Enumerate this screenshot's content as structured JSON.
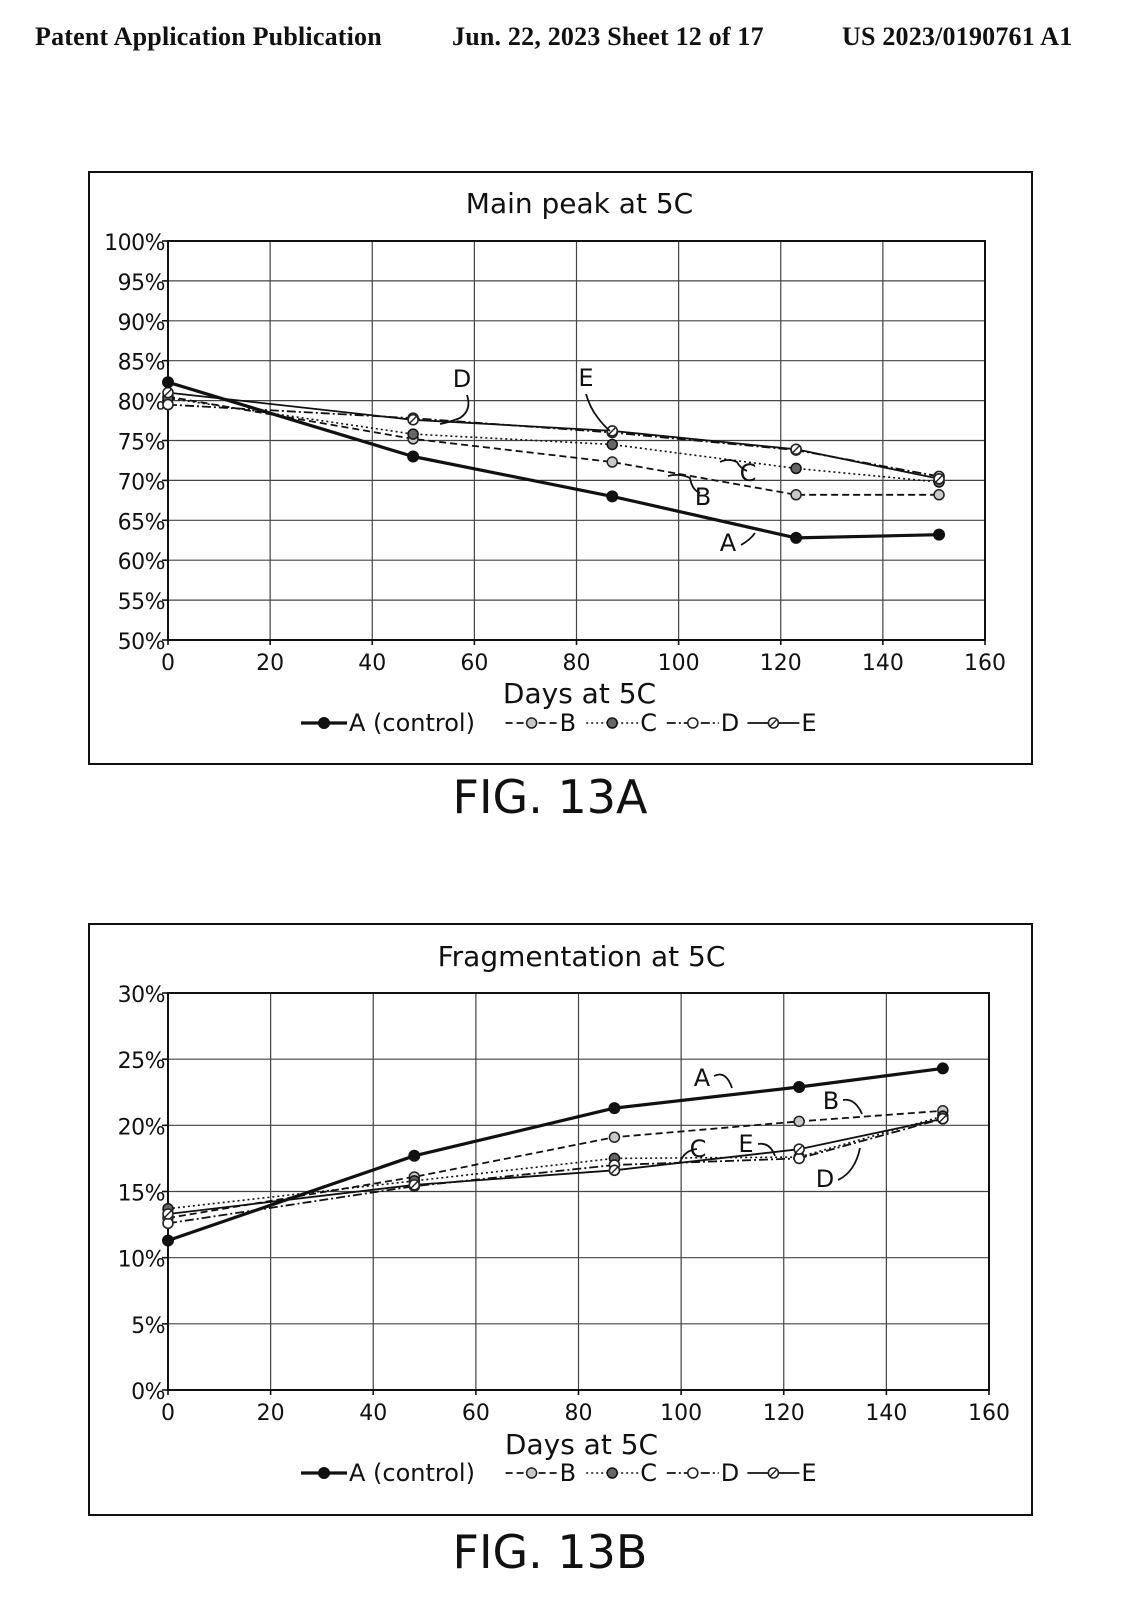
{
  "header": {
    "left": "Patent Application Publication",
    "middle": "Jun. 22, 2023  Sheet 12 of 17",
    "right": "US 2023/0190761 A1"
  },
  "figures": [
    {
      "caption": "FIG. 13A"
    },
    {
      "caption": "FIG. 13B"
    }
  ],
  "chart_data": [
    {
      "type": "line",
      "title": "Main peak at 5C",
      "xlabel": "Days at 5C",
      "ylabel": "",
      "xlim": [
        0,
        160
      ],
      "ylim": [
        50,
        100
      ],
      "x_ticks": [
        0,
        20,
        40,
        60,
        80,
        100,
        120,
        140,
        160
      ],
      "y_ticks": [
        50,
        55,
        60,
        65,
        70,
        75,
        80,
        85,
        90,
        95,
        100
      ],
      "y_tick_labels": [
        "50%",
        "55%",
        "60%",
        "65%",
        "70%",
        "75%",
        "80%",
        "85%",
        "90%",
        "95%",
        "100%"
      ],
      "grid": true,
      "legend_position": "bottom",
      "series": [
        {
          "name": "A (control)",
          "style": "solid-heavy",
          "marker": "filled",
          "x": [
            0,
            48,
            87,
            123,
            151
          ],
          "y": [
            82.3,
            73.0,
            68.0,
            62.8,
            63.2
          ]
        },
        {
          "name": "B",
          "style": "dashed",
          "marker": "gray",
          "x": [
            0,
            48,
            87,
            123,
            151
          ],
          "y": [
            80.5,
            75.2,
            72.3,
            68.2,
            68.2
          ]
        },
        {
          "name": "C",
          "style": "dotted",
          "marker": "dark",
          "x": [
            0,
            48,
            87,
            123,
            151
          ],
          "y": [
            80.3,
            75.8,
            74.5,
            71.5,
            69.8
          ]
        },
        {
          "name": "D",
          "style": "dash-dot",
          "marker": "open",
          "x": [
            0,
            48,
            87,
            123,
            151
          ],
          "y": [
            79.5,
            77.8,
            76.0,
            73.8,
            70.5
          ]
        },
        {
          "name": "E",
          "style": "solid",
          "marker": "hatched",
          "x": [
            0,
            48,
            87,
            123,
            151
          ],
          "y": [
            81.0,
            77.6,
            76.2,
            73.9,
            70.2
          ]
        }
      ],
      "annotations": [
        "A",
        "B",
        "C",
        "D",
        "E"
      ]
    },
    {
      "type": "line",
      "title": "Fragmentation at 5C",
      "xlabel": "Days at 5C",
      "ylabel": "",
      "xlim": [
        0,
        160
      ],
      "ylim": [
        0,
        30
      ],
      "x_ticks": [
        0,
        20,
        40,
        60,
        80,
        100,
        120,
        140,
        160
      ],
      "y_ticks": [
        0,
        5,
        10,
        15,
        20,
        25,
        30
      ],
      "y_tick_labels": [
        "0%",
        "5%",
        "10%",
        "15%",
        "20%",
        "25%",
        "30%"
      ],
      "grid": true,
      "legend_position": "bottom",
      "series": [
        {
          "name": "A (control)",
          "style": "solid-heavy",
          "marker": "filled",
          "x": [
            0,
            48,
            87,
            123,
            151
          ],
          "y": [
            11.3,
            17.7,
            21.3,
            22.9,
            24.3
          ]
        },
        {
          "name": "B",
          "style": "dashed",
          "marker": "gray",
          "x": [
            0,
            48,
            87,
            123,
            151
          ],
          "y": [
            13.0,
            16.1,
            19.1,
            20.3,
            21.1
          ]
        },
        {
          "name": "C",
          "style": "dotted",
          "marker": "dark",
          "x": [
            0,
            48,
            87,
            123,
            151
          ],
          "y": [
            13.7,
            15.8,
            17.5,
            17.6,
            20.7
          ]
        },
        {
          "name": "D",
          "style": "dash-dot",
          "marker": "open",
          "x": [
            0,
            48,
            87,
            123,
            151
          ],
          "y": [
            12.6,
            15.4,
            17.0,
            17.5,
            20.5
          ]
        },
        {
          "name": "E",
          "style": "solid",
          "marker": "hatched",
          "x": [
            0,
            48,
            87,
            123,
            151
          ],
          "y": [
            13.3,
            15.5,
            16.6,
            18.2,
            20.5
          ]
        }
      ],
      "annotations": [
        "A",
        "B",
        "C",
        "D",
        "E"
      ]
    }
  ]
}
